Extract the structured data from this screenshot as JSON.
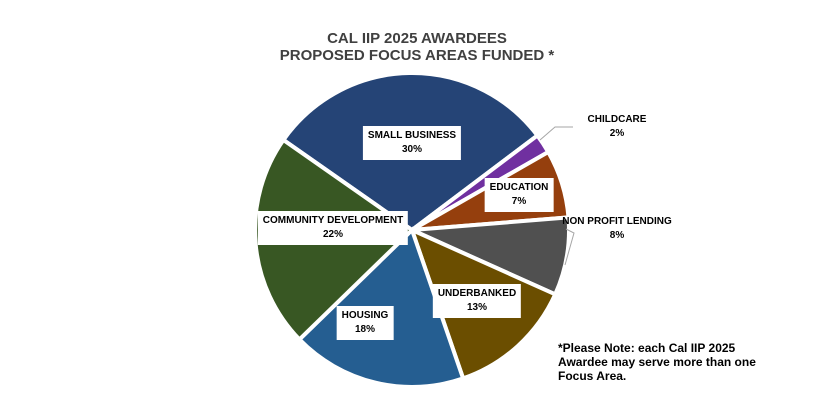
{
  "chart_data": {
    "type": "pie",
    "title": [
      "CAL IIP 2025 AWARDEES",
      "PROPOSED FOCUS AREAS FUNDED *"
    ],
    "slices": [
      {
        "label": "SMALL BUSINESS",
        "value": 30,
        "display": "30%",
        "color": "#254476"
      },
      {
        "label": "CHILDCARE",
        "value": 2,
        "display": "2%",
        "color": "#7030A0"
      },
      {
        "label": "EDUCATION",
        "value": 7,
        "display": "7%",
        "color": "#953F0D"
      },
      {
        "label": "NON PROFIT LENDING",
        "value": 8,
        "display": "8%",
        "color": "#505050"
      },
      {
        "label": "UNDERBANKED",
        "value": 13,
        "display": "13%",
        "color": "#6B4E00"
      },
      {
        "label": "HOUSING",
        "value": 18,
        "display": "18%",
        "color": "#255E91"
      },
      {
        "label": "COMMUNITY DEVELOPMENT",
        "value": 22,
        "display": "22%",
        "color": "#385723"
      }
    ],
    "legend": "none",
    "note": "*Please Note: each Cal IIP 2025 Awardee may serve more than one Focus Area."
  }
}
